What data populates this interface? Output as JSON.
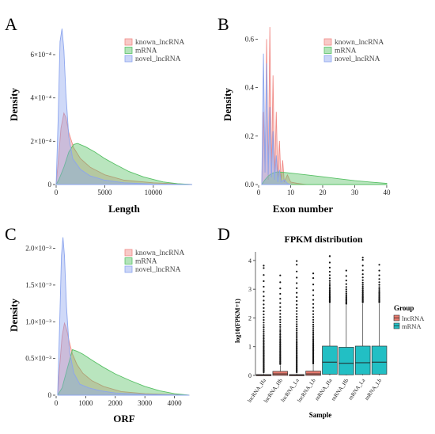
{
  "panels": [
    {
      "letter": "A",
      "ylabel": "Density",
      "xlabel": "Length",
      "legend": [
        "known_lncRNA",
        "mRNA",
        "novel_lncRNA"
      ]
    },
    {
      "letter": "B",
      "ylabel": "Density",
      "xlabel": "Exon number",
      "legend": [
        "known_lncRNA",
        "mRNA",
        "novel_lncRNA"
      ]
    },
    {
      "letter": "C",
      "ylabel": "Density",
      "xlabel": "ORF",
      "legend": [
        "known_lncRNA",
        "mRNA",
        "novel_lncRNA"
      ]
    },
    {
      "letter": "D",
      "title": "FPKM distribution",
      "ylabel": "log10(FPKM+1)",
      "xlabel": "Sample",
      "legend_title": "Group",
      "legend": [
        "lncRNA",
        "mRNA"
      ]
    }
  ],
  "colors": {
    "known_lncRNA": "#f08a86",
    "mRNA": "#57c065",
    "novel_lncRNA": "#8ca5ee",
    "lncRNA_box": "#e97b6f",
    "mRNA_box": "#22bfc4"
  },
  "chart_data": [
    {
      "type": "area",
      "panel": "A",
      "xlabel": "Length",
      "ylabel": "Density",
      "xlim": [
        0,
        14000
      ],
      "ylim": [
        0,
        0.00075
      ],
      "x_ticks": [
        0,
        5000,
        10000
      ],
      "x_tick_labels": [
        "0",
        "5000",
        "10000"
      ],
      "y_ticks": [
        0,
        0.0002,
        0.0004,
        0.0006
      ],
      "y_tick_labels": [
        "0",
        "2×10⁻⁴",
        "4×10⁻⁴",
        "6×10⁻⁴"
      ],
      "legend": "top-right",
      "series": [
        {
          "name": "known_lncRNA",
          "x": [
            0,
            200,
            500,
            800,
            1000,
            1300,
            1800,
            2500,
            3500,
            5000,
            7000,
            10000,
            14000
          ],
          "values": [
            0,
            0.0001,
            0.00026,
            0.00033,
            0.00031,
            0.00024,
            0.00017,
            0.00012,
            8e-05,
            4.5e-05,
            2e-05,
            8e-06,
            0
          ]
        },
        {
          "name": "mRNA",
          "x": [
            0,
            300,
            800,
            1300,
            1800,
            2200,
            3000,
            4000,
            5000,
            6000,
            7500,
            9000,
            11000,
            12500,
            14000
          ],
          "values": [
            0,
            2.5e-05,
            8e-05,
            0.00015,
            0.000185,
            0.00019,
            0.000175,
            0.00015,
            0.00012,
            9.5e-05,
            6e-05,
            3.5e-05,
            1.2e-05,
            4e-06,
            0
          ]
        },
        {
          "name": "novel_lncRNA",
          "x": [
            0,
            200,
            400,
            600,
            800,
            1000,
            1300,
            1700,
            2500,
            3500,
            5000,
            7000,
            10000,
            14000
          ],
          "values": [
            0,
            0.0003,
            0.00066,
            0.00072,
            0.00062,
            0.00042,
            0.00022,
            0.00012,
            7e-05,
            4e-05,
            2e-05,
            8e-06,
            2e-06,
            0
          ]
        }
      ]
    },
    {
      "type": "area",
      "panel": "B",
      "xlabel": "Exon number",
      "ylabel": "Density",
      "xlim": [
        0,
        41
      ],
      "ylim": [
        0,
        0.67
      ],
      "x_ticks": [
        0,
        10,
        20,
        30,
        40
      ],
      "x_tick_labels": [
        "0",
        "10",
        "20",
        "30",
        "40"
      ],
      "y_ticks": [
        0,
        0.2,
        0.4,
        0.6
      ],
      "y_tick_labels": [
        "0.0",
        "0.2",
        "0.4",
        "0.6"
      ],
      "legend": "top-right",
      "series": [
        {
          "name": "known_lncRNA",
          "x": [
            1,
            1.5,
            2,
            2.5,
            3,
            3.5,
            4,
            4.5,
            5,
            5.5,
            6,
            6.5,
            7,
            7.5,
            8,
            9,
            10,
            12,
            15
          ],
          "values": [
            0,
            0.3,
            0.05,
            0.6,
            0.02,
            0.65,
            0.03,
            0.45,
            0.02,
            0.3,
            0.02,
            0.18,
            0.01,
            0.1,
            0.01,
            0.04,
            0.01,
            0.005,
            0
          ]
        },
        {
          "name": "mRNA",
          "x": [
            1,
            2,
            3,
            4,
            5,
            6,
            8,
            10,
            15,
            20,
            25,
            30,
            35,
            40
          ],
          "values": [
            0,
            0.02,
            0.035,
            0.045,
            0.05,
            0.052,
            0.05,
            0.047,
            0.04,
            0.032,
            0.024,
            0.016,
            0.01,
            0.005
          ]
        },
        {
          "name": "novel_lncRNA",
          "x": [
            1,
            1.5,
            2,
            2.5,
            3,
            3.5,
            4,
            4.5,
            5,
            5.5,
            6,
            6.5,
            7,
            8,
            9,
            10
          ],
          "values": [
            0,
            0.54,
            0.05,
            0.5,
            0.04,
            0.32,
            0.03,
            0.22,
            0.02,
            0.12,
            0.01,
            0.06,
            0.01,
            0.02,
            0.005,
            0
          ]
        }
      ]
    },
    {
      "type": "area",
      "panel": "C",
      "xlabel": "ORF",
      "ylabel": "Density",
      "xlim": [
        0,
        4600
      ],
      "ylim": [
        0,
        0.0022
      ],
      "x_ticks": [
        0,
        1000,
        2000,
        3000,
        4000
      ],
      "x_tick_labels": [
        "0",
        "1000",
        "2000",
        "3000",
        "4000"
      ],
      "y_ticks": [
        0,
        0.0005,
        0.001,
        0.0015,
        0.002
      ],
      "y_tick_labels": [
        "0",
        "0.5×10⁻³",
        "1.0×10⁻³",
        "1.5×10⁻³",
        "2.0×10⁻³"
      ],
      "legend": "top-right",
      "series": [
        {
          "name": "known_lncRNA",
          "x": [
            50,
            120,
            200,
            280,
            350,
            450,
            550,
            700,
            900,
            1200,
            1600,
            2200,
            3000,
            4500
          ],
          "values": [
            0,
            0.0004,
            0.0008,
            0.00098,
            0.0009,
            0.00072,
            0.00056,
            0.00042,
            0.0003,
            0.0002,
            0.00012,
            5e-05,
            2e-05,
            0
          ]
        },
        {
          "name": "mRNA",
          "x": [
            50,
            200,
            400,
            550,
            700,
            900,
            1200,
            1600,
            2000,
            2500,
            3000,
            3500,
            4000,
            4500
          ],
          "values": [
            0,
            0.0001,
            0.0004,
            0.00062,
            0.0006,
            0.00056,
            0.00048,
            0.00038,
            0.00029,
            0.0002,
            0.00012,
            6e-05,
            2e-05,
            0
          ]
        },
        {
          "name": "novel_lncRNA",
          "x": [
            50,
            120,
            180,
            230,
            280,
            350,
            450,
            600,
            800,
            1100,
            1500,
            2000,
            3000,
            4500
          ],
          "values": [
            0,
            0.001,
            0.0019,
            0.00215,
            0.0019,
            0.0012,
            0.0006,
            0.0003,
            0.00015,
            0.0001,
            6e-05,
            3e-05,
            1e-05,
            0
          ]
        }
      ]
    },
    {
      "type": "box",
      "panel": "D",
      "title": "FPKM distribution",
      "xlabel": "Sample",
      "ylabel": "log10(FPKM+1)",
      "ylim": [
        0,
        4.3
      ],
      "y_ticks": [
        0,
        1,
        2,
        3,
        4
      ],
      "y_tick_labels": [
        "0",
        "1",
        "2",
        "3",
        "4"
      ],
      "categories": [
        "lncRNA_Ha",
        "lncRNA_Hb",
        "lncRNA_La",
        "lncRNA_Lb",
        "mRNA_Ha",
        "mRNA_Hb",
        "mRNA_La",
        "mRNA_Lb"
      ],
      "legend": "right",
      "groups": [
        "lncRNA",
        "lncRNA",
        "lncRNA",
        "lncRNA",
        "mRNA",
        "mRNA",
        "mRNA",
        "mRNA"
      ],
      "boxes": [
        {
          "q1": 0.0,
          "median": 0.01,
          "q3": 0.03,
          "whisker_low": 0,
          "whisker_high": 0.07,
          "outlier_max": 3.82
        },
        {
          "q1": 0.0,
          "median": 0.05,
          "q3": 0.14,
          "whisker_low": 0,
          "whisker_high": 0.35,
          "outlier_max": 3.48
        },
        {
          "q1": 0.0,
          "median": 0.01,
          "q3": 0.03,
          "whisker_low": 0,
          "whisker_high": 0.07,
          "outlier_max": 3.98
        },
        {
          "q1": 0.0,
          "median": 0.05,
          "q3": 0.15,
          "whisker_low": 0,
          "whisker_high": 0.37,
          "outlier_max": 3.55
        },
        {
          "q1": 0.04,
          "median": 0.46,
          "q3": 1.02,
          "whisker_low": 0,
          "whisker_high": 2.5,
          "outlier_max": 4.15
        },
        {
          "q1": 0.02,
          "median": 0.42,
          "q3": 0.98,
          "whisker_low": 0,
          "whisker_high": 2.45,
          "outlier_max": 3.65
        },
        {
          "q1": 0.03,
          "median": 0.44,
          "q3": 1.02,
          "whisker_low": 0,
          "whisker_high": 2.5,
          "outlier_max": 4.1
        },
        {
          "q1": 0.04,
          "median": 0.46,
          "q3": 1.02,
          "whisker_low": 0,
          "whisker_high": 2.5,
          "outlier_max": 3.85
        }
      ]
    }
  ]
}
